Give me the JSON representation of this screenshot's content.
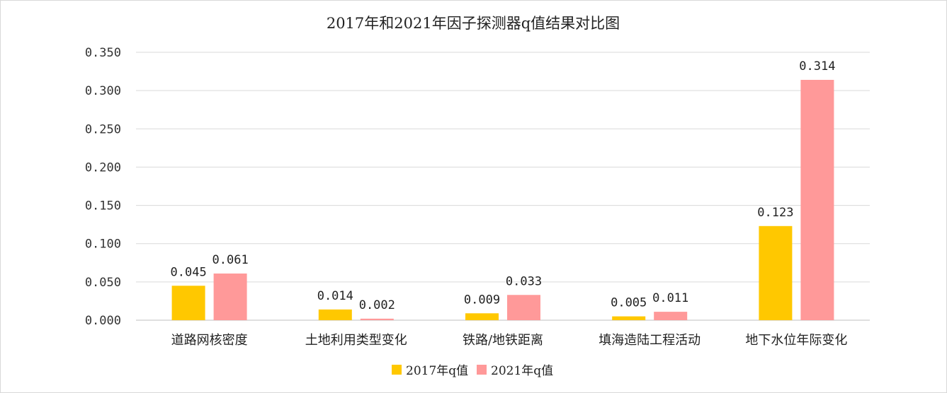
{
  "chart_data": {
    "type": "bar",
    "title": "2017年和2021年因子探测器q值结果对比图",
    "xlabel": "",
    "ylabel": "",
    "categories": [
      "道路网核密度",
      "土地利用类型变化",
      "铁路/地铁距离",
      "填海造陆工程活动",
      "地下水位年际变化"
    ],
    "series": [
      {
        "name": "2017年q值",
        "color": "#FFC800",
        "values": [
          0.045,
          0.014,
          0.009,
          0.005,
          0.123
        ],
        "labels": [
          "0.045",
          "0.014",
          "0.009",
          "0.005",
          "0.123"
        ]
      },
      {
        "name": "2021年q值",
        "color": "#FF9999",
        "values": [
          0.061,
          0.002,
          0.033,
          0.011,
          0.314
        ],
        "labels": [
          "0.061",
          "0.002",
          "0.033",
          "0.011",
          "0.314"
        ]
      }
    ],
    "ylim": [
      0,
      0.35
    ],
    "yticks": [
      0.0,
      0.05,
      0.1,
      0.15,
      0.2,
      0.25,
      0.3,
      0.35
    ],
    "ytick_labels": [
      "0.000",
      "0.050",
      "0.100",
      "0.150",
      "0.200",
      "0.250",
      "0.300",
      "0.350"
    ],
    "grid": true,
    "legend_position": "bottom"
  }
}
